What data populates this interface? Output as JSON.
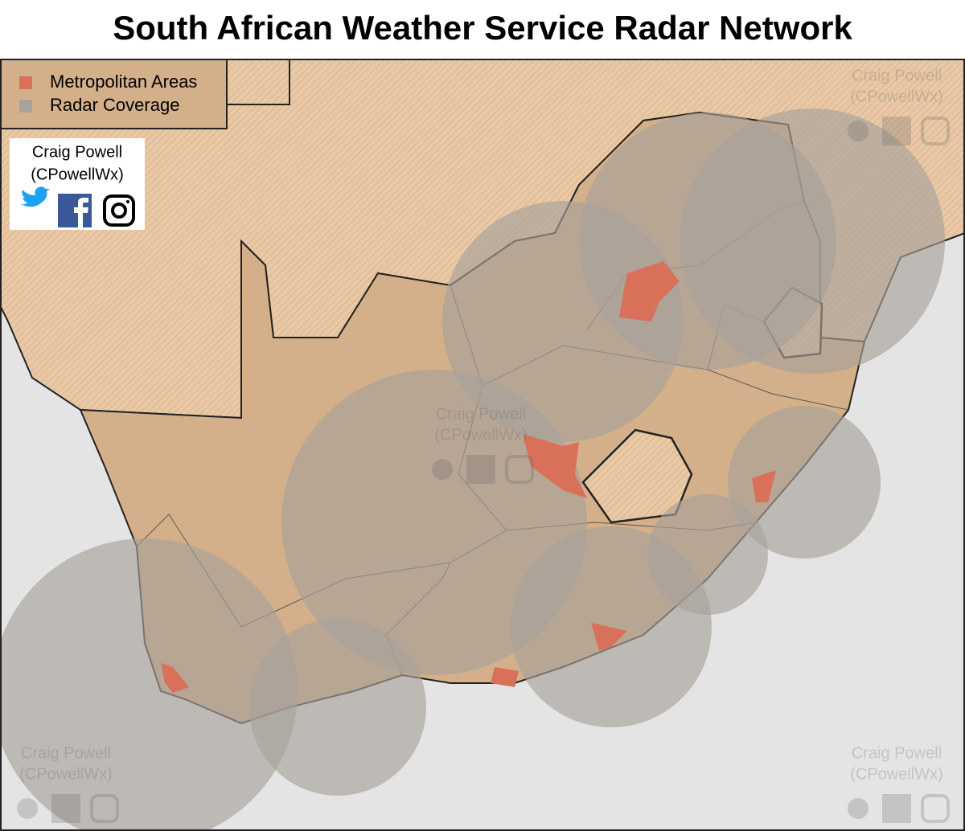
{
  "title": "South African Weather Service Radar Network",
  "legend": {
    "items": [
      {
        "label": "Metropolitan Areas",
        "color": "#d9705a"
      },
      {
        "label": "Radar Coverage",
        "color": "#a8a29a"
      }
    ]
  },
  "credit": {
    "name": "Craig Powell",
    "handle": "(CPowellWx)"
  },
  "watermarks": [
    {
      "name": "Craig Powell",
      "handle": "(CPowellWx)"
    },
    {
      "name": "Craig Powell",
      "handle": "(CPowellWx)"
    },
    {
      "name": "Craig Powell",
      "handle": "(CPowellWx)"
    },
    {
      "name": "Craig Powell",
      "handle": "(CPowellWx)"
    }
  ]
}
